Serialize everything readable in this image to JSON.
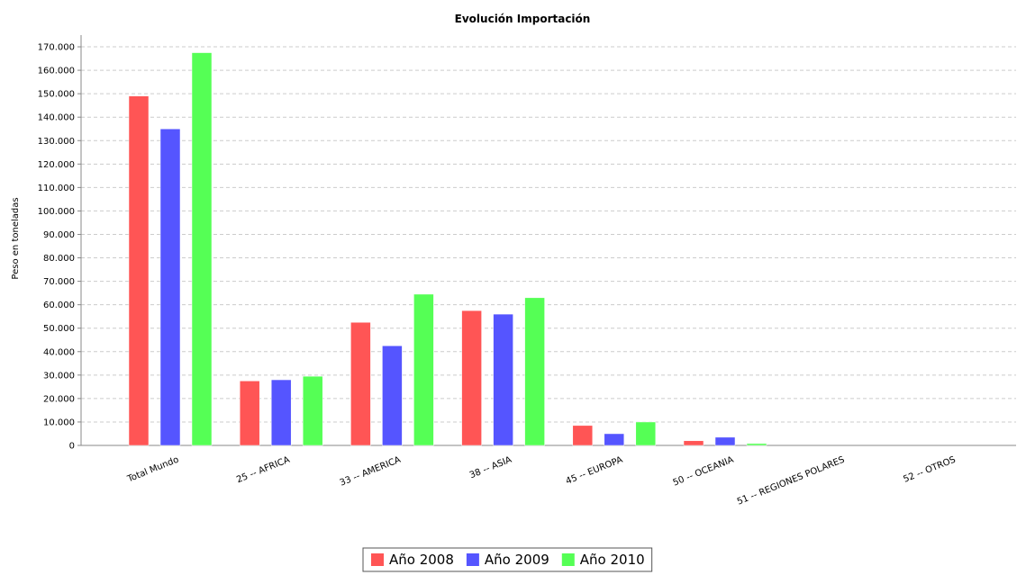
{
  "chart_data": {
    "type": "bar",
    "title": "Evolución Importación",
    "ylabel": "Peso en toneladas",
    "xlabel": "",
    "ylim": [
      0,
      175000
    ],
    "yticks": [
      0,
      10000,
      20000,
      30000,
      40000,
      50000,
      60000,
      70000,
      80000,
      90000,
      100000,
      110000,
      120000,
      130000,
      140000,
      150000,
      160000,
      170000
    ],
    "ytick_labels": [
      "0",
      "10.000",
      "20.000",
      "30.000",
      "40.000",
      "50.000",
      "60.000",
      "70.000",
      "80.000",
      "90.000",
      "100.000",
      "110.000",
      "120.000",
      "130.000",
      "140.000",
      "150.000",
      "160.000",
      "170.000"
    ],
    "grid": true,
    "legend_position": "bottom",
    "categories": [
      "Total Mundo",
      "25 -- AFRICA",
      "33 -- AMERICA",
      "38 -- ASIA",
      "45 -- EUROPA",
      "50 -- OCEANIA",
      "51 -- REGIONES POLARES",
      "52 -- OTROS"
    ],
    "series": [
      {
        "name": "Año 2008",
        "color": "#ff5555",
        "values": [
          149000,
          27500,
          52500,
          57500,
          8500,
          2000,
          0,
          0
        ]
      },
      {
        "name": "Año 2009",
        "color": "#5555ff",
        "values": [
          135000,
          28000,
          42500,
          56000,
          5000,
          3500,
          0,
          0
        ]
      },
      {
        "name": "Año 2010",
        "color": "#55ff55",
        "values": [
          167500,
          29500,
          64500,
          63000,
          10000,
          800,
          0,
          0
        ]
      }
    ]
  }
}
